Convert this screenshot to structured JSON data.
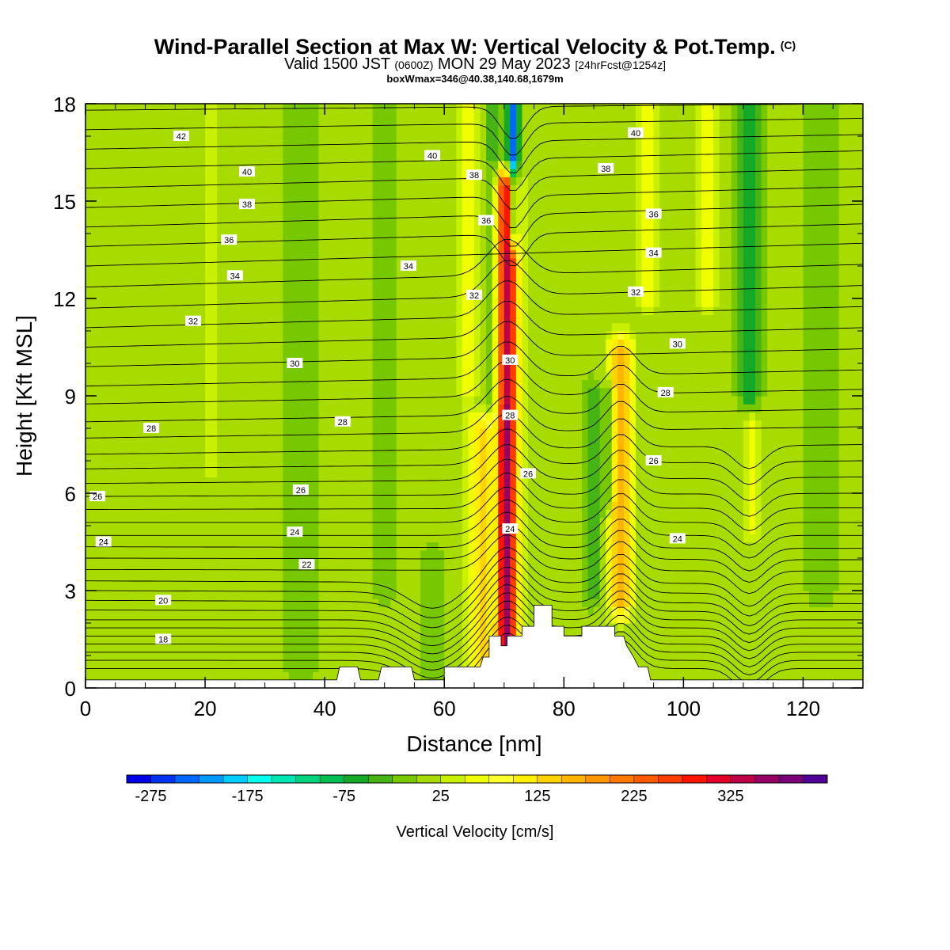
{
  "header": {
    "title": "Wind-Parallel Section at Max W: Vertical Velocity & Pot.Temp.",
    "title_mark": "(C)",
    "valid_prefix": "Valid 1500 JST",
    "valid_utc": "(0600Z)",
    "valid_date": "MON 29 May 2023",
    "forecast": "[24hrFcst@1254z]",
    "box_info": "boxWmax=346@40.38,140.68,1679m"
  },
  "chart_data": {
    "type": "heatmap",
    "xlabel": "Distance [nm]",
    "ylabel": "Height [Kft MSL]",
    "xlim": [
      0,
      130
    ],
    "ylim": [
      0,
      18
    ],
    "x_ticks": [
      0,
      20,
      40,
      60,
      80,
      100,
      120
    ],
    "y_ticks": [
      0,
      3,
      6,
      9,
      12,
      15,
      18
    ],
    "colorbar": {
      "title": "Vertical Velocity [cm/s]",
      "levels_min": -300,
      "levels_step": 25,
      "colors": [
        "#0000e6",
        "#0033f0",
        "#0066ff",
        "#0099ff",
        "#00ccff",
        "#00ffee",
        "#00e6b4",
        "#00d27d",
        "#00be50",
        "#14aa28",
        "#46b414",
        "#78c800",
        "#a8dc00",
        "#c8f000",
        "#f0ff00",
        "#ffff32",
        "#fff000",
        "#ffd200",
        "#ffb400",
        "#ff9600",
        "#ff7800",
        "#ff5a00",
        "#ff3c00",
        "#ff1400",
        "#e60028",
        "#be0046",
        "#960064",
        "#780078",
        "#500096"
      ],
      "tick_labels": [
        "-275",
        "-175",
        "-75",
        "25",
        "125",
        "225",
        "325"
      ],
      "tick_values": [
        -275,
        -175,
        -75,
        25,
        125,
        225,
        325
      ]
    },
    "background_w": 10,
    "w_features": [
      {
        "x": 70.5,
        "y0": 0.5,
        "y1": 15.5,
        "w": 1.8,
        "amp": 340
      },
      {
        "x": 66.5,
        "y0": 0,
        "y1": 8,
        "w": 2.4,
        "amp": 130
      },
      {
        "x": 89.5,
        "y0": 2.6,
        "y1": 10.5,
        "w": 1.9,
        "amp": 160
      },
      {
        "x": 71.5,
        "y0": 14,
        "y1": 18,
        "w": 0.9,
        "amp": -240
      },
      {
        "x": 68.2,
        "y0": 2,
        "y1": 18,
        "w": 1.0,
        "amp": -60
      },
      {
        "x": 111,
        "y0": 9,
        "y1": 18,
        "w": 1.8,
        "amp": -80
      },
      {
        "x": 85,
        "y0": 3,
        "y1": 9,
        "w": 1.6,
        "amp": -55
      },
      {
        "x": 87.5,
        "y0": 6,
        "y1": 9,
        "w": 0.7,
        "amp": -70
      },
      {
        "x": 104,
        "y0": 12,
        "y1": 18,
        "w": 1.5,
        "amp": 70
      },
      {
        "x": 94,
        "y0": 12,
        "y1": 18,
        "w": 1.5,
        "amp": 70
      },
      {
        "x": 64,
        "y0": 9,
        "y1": 18,
        "w": 1.4,
        "amp": 50
      },
      {
        "x": 111.5,
        "y0": 5,
        "y1": 8,
        "w": 1.2,
        "amp": 60
      },
      {
        "x": 36,
        "y0": 0.5,
        "y1": 18,
        "w": 2.5,
        "amp": -30
      },
      {
        "x": 50,
        "y0": 3,
        "y1": 18,
        "w": 2.0,
        "amp": -25
      },
      {
        "x": 123,
        "y0": 3,
        "y1": 18,
        "w": 2.5,
        "amp": -30
      },
      {
        "x": 21,
        "y0": 7,
        "y1": 18,
        "w": 1.5,
        "amp": 40
      },
      {
        "x": 58,
        "y0": 0,
        "y1": 4,
        "w": 2.0,
        "amp": -30
      }
    ],
    "terrain": [
      [
        0,
        0.25
      ],
      [
        42,
        0.25
      ],
      [
        42.5,
        0.65
      ],
      [
        45.5,
        0.65
      ],
      [
        46,
        0.25
      ],
      [
        49,
        0.25
      ],
      [
        49.5,
        0.65
      ],
      [
        54.5,
        0.65
      ],
      [
        55,
        0.25
      ],
      [
        60,
        0.25
      ],
      [
        60,
        0.65
      ],
      [
        66,
        0.65
      ],
      [
        66.5,
        0.95
      ],
      [
        67.5,
        0.95
      ],
      [
        67.5,
        1.6
      ],
      [
        69.5,
        1.6
      ],
      [
        69.5,
        1.3
      ],
      [
        70.5,
        1.3
      ],
      [
        70.5,
        1.6
      ],
      [
        73,
        1.6
      ],
      [
        73,
        1.9
      ],
      [
        75,
        1.9
      ],
      [
        75,
        2.55
      ],
      [
        78,
        2.55
      ],
      [
        78,
        1.9
      ],
      [
        80,
        1.9
      ],
      [
        80,
        1.6
      ],
      [
        83,
        1.6
      ],
      [
        83,
        1.9
      ],
      [
        88.5,
        1.9
      ],
      [
        88.5,
        1.6
      ],
      [
        90,
        1.6
      ],
      [
        90.5,
        1.3
      ],
      [
        91.5,
        1.0
      ],
      [
        92.5,
        0.65
      ],
      [
        94,
        0.65
      ],
      [
        94.5,
        0.25
      ],
      [
        130,
        0.25
      ]
    ],
    "theta_lines": {
      "base": [
        [
          0.6,
          0.6
        ],
        [
          0.85,
          0.85
        ],
        [
          1.1,
          1.1
        ],
        [
          1.35,
          1.35
        ],
        [
          1.6,
          1.6
        ],
        [
          1.85,
          1.85
        ],
        [
          2.1,
          2.1
        ],
        [
          2.4,
          2.35
        ],
        [
          2.7,
          2.6
        ],
        [
          3.0,
          2.9
        ],
        [
          3.3,
          3.2
        ],
        [
          3.65,
          3.6
        ],
        [
          4.0,
          3.95
        ],
        [
          4.35,
          4.3
        ],
        [
          4.7,
          4.7
        ],
        [
          5.1,
          5.1
        ],
        [
          5.5,
          5.55
        ],
        [
          5.9,
          6.0
        ],
        [
          6.3,
          6.5
        ],
        [
          6.75,
          7.0
        ],
        [
          7.2,
          7.5
        ],
        [
          7.7,
          8.05
        ],
        [
          8.2,
          8.6
        ],
        [
          8.75,
          9.2
        ],
        [
          9.3,
          9.8
        ],
        [
          9.9,
          10.45
        ],
        [
          10.5,
          11.1
        ],
        [
          11.1,
          11.75
        ],
        [
          11.7,
          12.4
        ],
        [
          12.35,
          13.05
        ],
        [
          13.0,
          13.7
        ],
        [
          13.6,
          14.3
        ],
        [
          14.2,
          14.9
        ],
        [
          14.8,
          15.45
        ],
        [
          15.4,
          16.0
        ],
        [
          16.0,
          16.55
        ],
        [
          16.6,
          17.05
        ],
        [
          17.2,
          17.55
        ],
        [
          17.8,
          18.0
        ]
      ],
      "bumps": [
        {
          "x": 70.5,
          "w": 4.5,
          "amp": 1.1,
          "ymax": 13
        },
        {
          "x": 89.5,
          "w": 3.5,
          "amp": 0.9,
          "ymax": 10
        },
        {
          "x": 111,
          "w": 3.5,
          "amp": -0.7,
          "ymax": 7.5
        },
        {
          "x": 58,
          "w": 6,
          "amp": -0.8,
          "ymax": 3.5
        },
        {
          "x": 71.5,
          "w": 3,
          "amp": -1.0,
          "ymin": 13.5
        }
      ]
    },
    "theta_labels": [
      {
        "text": "42",
        "x": 16,
        "y": 17.0
      },
      {
        "text": "40",
        "x": 27,
        "y": 15.9
      },
      {
        "text": "38",
        "x": 27,
        "y": 14.9
      },
      {
        "text": "36",
        "x": 24,
        "y": 13.8
      },
      {
        "text": "34",
        "x": 25,
        "y": 12.7
      },
      {
        "text": "32",
        "x": 18,
        "y": 11.3
      },
      {
        "text": "30",
        "x": 35,
        "y": 10.0
      },
      {
        "text": "28",
        "x": 11,
        "y": 8.0
      },
      {
        "text": "26",
        "x": 2,
        "y": 5.9
      },
      {
        "text": "24",
        "x": 3,
        "y": 4.5
      },
      {
        "text": "20",
        "x": 13,
        "y": 2.7
      },
      {
        "text": "18",
        "x": 13,
        "y": 1.5
      },
      {
        "text": "28",
        "x": 43,
        "y": 8.2
      },
      {
        "text": "26",
        "x": 36,
        "y": 6.1
      },
      {
        "text": "24",
        "x": 35,
        "y": 4.8
      },
      {
        "text": "22",
        "x": 37,
        "y": 3.8
      },
      {
        "text": "40",
        "x": 58,
        "y": 16.4
      },
      {
        "text": "34",
        "x": 54,
        "y": 13.0
      },
      {
        "text": "38",
        "x": 65,
        "y": 15.8
      },
      {
        "text": "36",
        "x": 67,
        "y": 14.4
      },
      {
        "text": "32",
        "x": 65,
        "y": 12.1
      },
      {
        "text": "30",
        "x": 71,
        "y": 10.1
      },
      {
        "text": "28",
        "x": 71,
        "y": 8.4
      },
      {
        "text": "26",
        "x": 74,
        "y": 6.6
      },
      {
        "text": "24",
        "x": 71,
        "y": 4.9
      },
      {
        "text": "40",
        "x": 92,
        "y": 17.1
      },
      {
        "text": "38",
        "x": 87,
        "y": 16.0
      },
      {
        "text": "36",
        "x": 95,
        "y": 14.6
      },
      {
        "text": "34",
        "x": 95,
        "y": 13.4
      },
      {
        "text": "32",
        "x": 92,
        "y": 12.2
      },
      {
        "text": "30",
        "x": 99,
        "y": 10.6
      },
      {
        "text": "28",
        "x": 97,
        "y": 9.1
      },
      {
        "text": "26",
        "x": 95,
        "y": 7.0
      },
      {
        "text": "24",
        "x": 99,
        "y": 4.6
      }
    ]
  }
}
